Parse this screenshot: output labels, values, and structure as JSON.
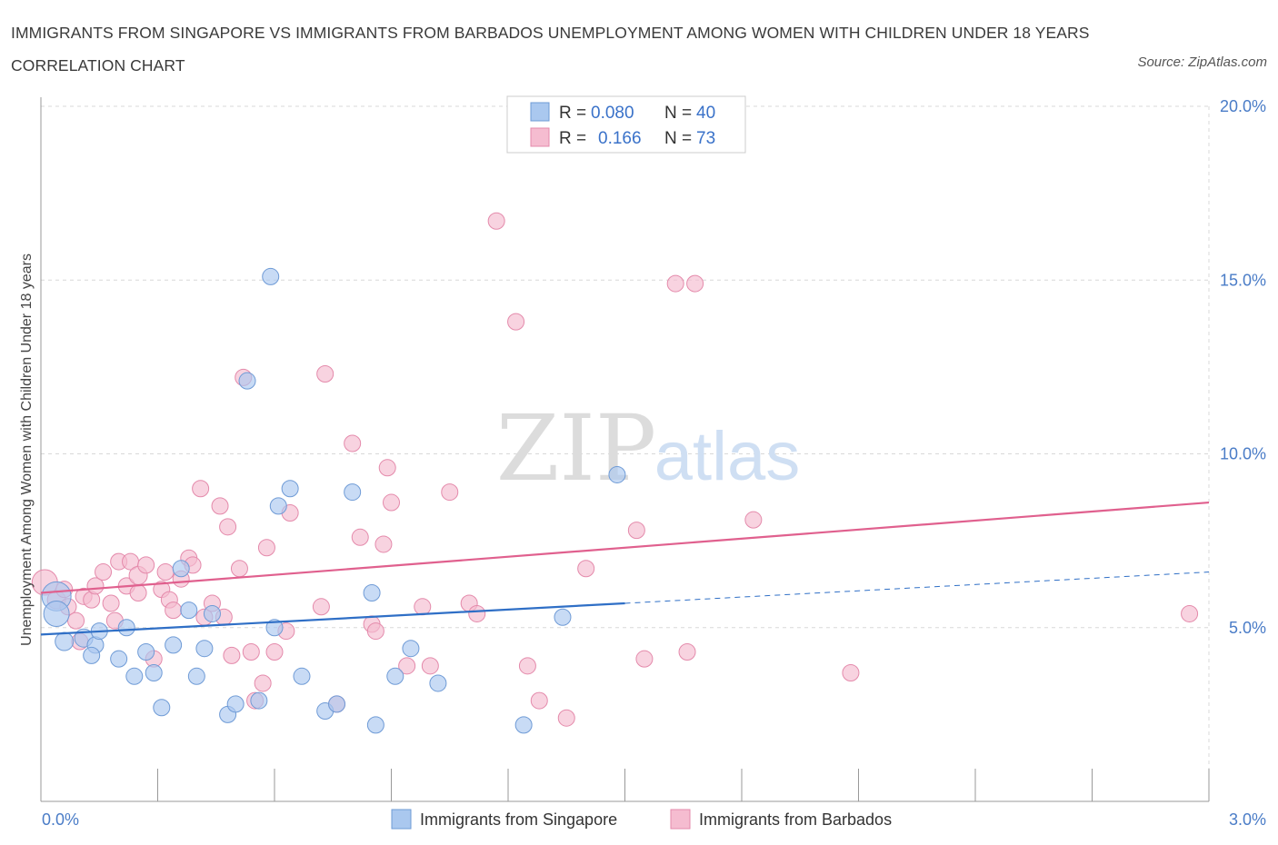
{
  "title": "IMMIGRANTS FROM SINGAPORE VS IMMIGRANTS FROM BARBADOS UNEMPLOYMENT AMONG WOMEN WITH CHILDREN UNDER 18 YEARS CORRELATION CHART",
  "source": "Source: ZipAtlas.com",
  "watermark": {
    "zip": "ZIP",
    "atlas": "atlas"
  },
  "colors": {
    "singapore_fill": "#aac8ef",
    "singapore_stroke": "#6f9bd6",
    "singapore_line": "#2f6fc6",
    "barbados_fill": "#f5bcd0",
    "barbados_stroke": "#e48aab",
    "barbados_line": "#e0608e",
    "value_blue": "#3a72c9",
    "grid": "#d8d8d8"
  },
  "legend": {
    "rows": [
      {
        "r_label": "R =",
        "r_value": "0.080",
        "n_label": "N =",
        "n_value": "40"
      },
      {
        "r_label": "R =",
        "r_value": "0.166",
        "n_label": "N =",
        "n_value": "73"
      }
    ]
  },
  "bottom_legend": [
    "Immigrants from Singapore",
    "Immigrants from Barbados"
  ],
  "chart_data": {
    "type": "scatter",
    "ylabel": "Unemployment Among Women with Children Under 18 years",
    "xlim": [
      0,
      3
    ],
    "ylim": [
      0,
      20
    ],
    "x_tick_labels": [
      {
        "value": 0,
        "label": "0.0%"
      },
      {
        "value": 3,
        "label": "3.0%"
      }
    ],
    "y_tick_labels": [
      {
        "value": 5,
        "label": "5.0%"
      },
      {
        "value": 10,
        "label": "10.0%"
      },
      {
        "value": 15,
        "label": "15.0%"
      },
      {
        "value": 20,
        "label": "20.0%"
      }
    ],
    "grid": true,
    "legend_position": "top-center",
    "series": [
      {
        "name": "Immigrants from Singapore",
        "trend": {
          "x": [
            0,
            1.5
          ],
          "y": [
            4.8,
            5.7
          ],
          "dashed_extension": {
            "x": [
              1.5,
              3.0
            ],
            "y": [
              5.7,
              6.6
            ]
          }
        },
        "points": [
          [
            0.04,
            5.9,
            16
          ],
          [
            0.04,
            5.4,
            14
          ],
          [
            0.06,
            4.6,
            10
          ],
          [
            0.11,
            4.7,
            10
          ],
          [
            0.14,
            4.5,
            9
          ],
          [
            0.13,
            4.2,
            9
          ],
          [
            0.15,
            4.9,
            9
          ],
          [
            0.2,
            4.1,
            9
          ],
          [
            0.22,
            5.0,
            9
          ],
          [
            0.24,
            3.6,
            9
          ],
          [
            0.27,
            4.3,
            9
          ],
          [
            0.29,
            3.7,
            9
          ],
          [
            0.31,
            2.7,
            9
          ],
          [
            0.34,
            4.5,
            9
          ],
          [
            0.36,
            6.7,
            9
          ],
          [
            0.38,
            5.5,
            9
          ],
          [
            0.4,
            3.6,
            9
          ],
          [
            0.42,
            4.4,
            9
          ],
          [
            0.44,
            5.4,
            9
          ],
          [
            0.48,
            2.5,
            9
          ],
          [
            0.5,
            2.8,
            9
          ],
          [
            0.53,
            12.1,
            9
          ],
          [
            0.59,
            15.1,
            9
          ],
          [
            0.56,
            2.9,
            9
          ],
          [
            0.6,
            5.0,
            9
          ],
          [
            0.61,
            8.5,
            9
          ],
          [
            0.64,
            9.0,
            9
          ],
          [
            0.67,
            3.6,
            9
          ],
          [
            0.73,
            2.6,
            9
          ],
          [
            0.76,
            2.8,
            9
          ],
          [
            0.8,
            8.9,
            9
          ],
          [
            0.85,
            6.0,
            9
          ],
          [
            0.86,
            2.2,
            9
          ],
          [
            0.91,
            3.6,
            9
          ],
          [
            0.95,
            4.4,
            9
          ],
          [
            1.02,
            3.4,
            9
          ],
          [
            1.24,
            2.2,
            9
          ],
          [
            1.34,
            5.3,
            9
          ],
          [
            1.48,
            9.4,
            9
          ]
        ]
      },
      {
        "name": "Immigrants from Barbados",
        "trend": {
          "x": [
            0,
            3.0
          ],
          "y": [
            6.0,
            8.6
          ]
        },
        "points": [
          [
            0.01,
            6.3,
            14
          ],
          [
            0.04,
            5.8,
            10
          ],
          [
            0.06,
            6.1,
            9
          ],
          [
            0.07,
            5.6,
            9
          ],
          [
            0.09,
            5.2,
            9
          ],
          [
            0.1,
            4.6,
            9
          ],
          [
            0.11,
            5.9,
            9
          ],
          [
            0.13,
            5.8,
            9
          ],
          [
            0.14,
            6.2,
            9
          ],
          [
            0.16,
            6.6,
            9
          ],
          [
            0.18,
            5.7,
            9
          ],
          [
            0.19,
            5.2,
            9
          ],
          [
            0.2,
            6.9,
            9
          ],
          [
            0.22,
            6.2,
            9
          ],
          [
            0.23,
            6.9,
            9
          ],
          [
            0.25,
            6.5,
            10
          ],
          [
            0.25,
            6.0,
            9
          ],
          [
            0.27,
            6.8,
            9
          ],
          [
            0.29,
            4.1,
            9
          ],
          [
            0.31,
            6.1,
            9
          ],
          [
            0.32,
            6.6,
            9
          ],
          [
            0.33,
            5.8,
            9
          ],
          [
            0.34,
            5.5,
            9
          ],
          [
            0.36,
            6.4,
            9
          ],
          [
            0.38,
            7.0,
            9
          ],
          [
            0.39,
            6.8,
            9
          ],
          [
            0.41,
            9.0,
            9
          ],
          [
            0.42,
            5.3,
            9
          ],
          [
            0.44,
            5.7,
            9
          ],
          [
            0.46,
            8.5,
            9
          ],
          [
            0.47,
            5.3,
            9
          ],
          [
            0.48,
            7.9,
            9
          ],
          [
            0.49,
            4.2,
            9
          ],
          [
            0.51,
            6.7,
            9
          ],
          [
            0.52,
            12.2,
            9
          ],
          [
            0.54,
            4.3,
            9
          ],
          [
            0.55,
            2.9,
            9
          ],
          [
            0.57,
            3.4,
            9
          ],
          [
            0.58,
            7.3,
            9
          ],
          [
            0.6,
            4.3,
            9
          ],
          [
            0.63,
            4.9,
            9
          ],
          [
            0.64,
            8.3,
            9
          ],
          [
            0.72,
            5.6,
            9
          ],
          [
            0.73,
            12.3,
            9
          ],
          [
            0.76,
            2.8,
            9
          ],
          [
            0.8,
            10.3,
            9
          ],
          [
            0.82,
            7.6,
            9
          ],
          [
            0.85,
            5.1,
            9
          ],
          [
            0.86,
            4.9,
            9
          ],
          [
            0.88,
            7.4,
            9
          ],
          [
            0.89,
            9.6,
            9
          ],
          [
            0.9,
            8.6,
            9
          ],
          [
            0.94,
            3.9,
            9
          ],
          [
            0.98,
            5.6,
            9
          ],
          [
            1.0,
            3.9,
            9
          ],
          [
            1.05,
            8.9,
            9
          ],
          [
            1.1,
            5.7,
            9
          ],
          [
            1.12,
            5.4,
            9
          ],
          [
            1.17,
            16.7,
            9
          ],
          [
            1.22,
            13.8,
            9
          ],
          [
            1.25,
            3.9,
            9
          ],
          [
            1.28,
            2.9,
            9
          ],
          [
            1.35,
            2.4,
            9
          ],
          [
            1.4,
            6.7,
            9
          ],
          [
            1.53,
            7.8,
            9
          ],
          [
            1.55,
            4.1,
            9
          ],
          [
            1.63,
            14.9,
            9
          ],
          [
            1.66,
            4.3,
            9
          ],
          [
            1.68,
            14.9,
            9
          ],
          [
            1.83,
            8.1,
            9
          ],
          [
            2.08,
            3.7,
            9
          ],
          [
            2.95,
            5.4,
            9
          ]
        ]
      }
    ]
  }
}
